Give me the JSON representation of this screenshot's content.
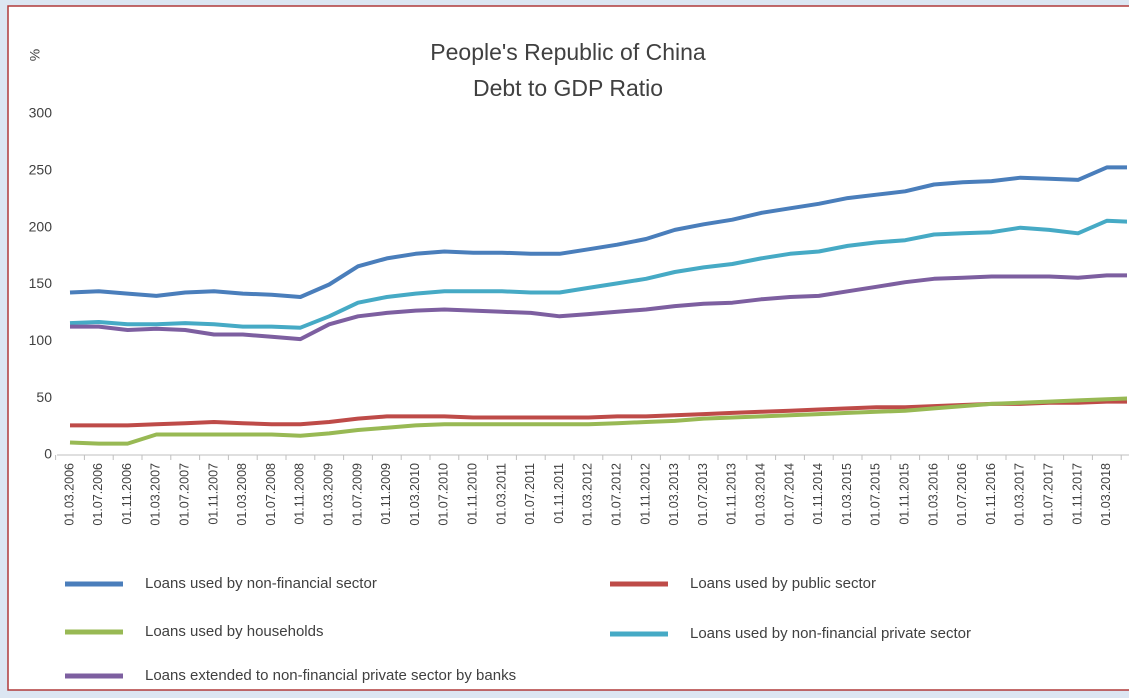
{
  "chart_data": {
    "type": "line",
    "title": [
      "People's Republic of China",
      "Debt to GDP Ratio"
    ],
    "ylabel": "%",
    "categories": [
      "01.03.2006",
      "01.07.2006",
      "01.11.2006",
      "01.03.2007",
      "01.07.2007",
      "01.11.2007",
      "01.03.2008",
      "01.07.2008",
      "01.11.2008",
      "01.03.2009",
      "01.07.2009",
      "01.11.2009",
      "01.03.2010",
      "01.07.2010",
      "01.11.2010",
      "01.03.2011",
      "01.07.2011",
      "01.11.2011",
      "01.03.2012",
      "01.07.2012",
      "01.11.2012",
      "01.03.2013",
      "01.07.2013",
      "01.11.2013",
      "01.03.2014",
      "01.07.2014",
      "01.11.2014",
      "01.03.2015",
      "01.07.2015",
      "01.11.2015",
      "01.03.2016",
      "01.07.2016",
      "01.11.2016",
      "01.03.2017",
      "01.07.2017",
      "01.11.2017",
      "01.03.2018",
      null
    ],
    "series": [
      {
        "name": "Loans used by non-financial sector",
        "color": "#4a7ebb",
        "values": [
          143,
          144,
          142,
          140,
          143,
          144,
          142,
          141,
          139,
          150,
          166,
          173,
          177,
          179,
          178,
          178,
          177,
          177,
          181,
          185,
          190,
          198,
          203,
          207,
          213,
          217,
          221,
          226,
          229,
          232,
          238,
          240,
          241,
          244,
          243,
          242,
          253,
          253
        ]
      },
      {
        "name": "Loans used by public sector",
        "color": "#be4b48",
        "values": [
          26,
          26,
          26,
          27,
          28,
          29,
          28,
          27,
          27,
          29,
          32,
          34,
          34,
          34,
          33,
          33,
          33,
          33,
          33,
          34,
          34,
          35,
          36,
          37,
          38,
          39,
          40,
          41,
          42,
          42,
          43,
          44,
          45,
          45,
          46,
          46,
          47,
          47
        ]
      },
      {
        "name": "Loans used by households",
        "color": "#98b954",
        "values": [
          11,
          10,
          10,
          18,
          18,
          18,
          18,
          18,
          17,
          19,
          22,
          24,
          26,
          27,
          27,
          27,
          27,
          27,
          27,
          28,
          29,
          30,
          32,
          33,
          34,
          35,
          36,
          37,
          38,
          39,
          41,
          43,
          45,
          46,
          47,
          48,
          49,
          50
        ]
      },
      {
        "name": "Loans used by non-financial private sector",
        "color": "#46aac5",
        "values": [
          116,
          117,
          115,
          115,
          116,
          115,
          113,
          113,
          112,
          122,
          134,
          139,
          142,
          144,
          144,
          144,
          143,
          143,
          147,
          151,
          155,
          161,
          165,
          168,
          173,
          177,
          179,
          184,
          187,
          189,
          194,
          195,
          196,
          200,
          198,
          195,
          206,
          205
        ]
      },
      {
        "name": "Loans extended to non-financial private sector by banks",
        "color": "#7d5fa0",
        "values": [
          113,
          113,
          110,
          111,
          110,
          106,
          106,
          104,
          102,
          115,
          122,
          125,
          127,
          128,
          127,
          126,
          125,
          122,
          124,
          126,
          128,
          131,
          133,
          134,
          137,
          139,
          140,
          144,
          148,
          152,
          155,
          156,
          157,
          157,
          157,
          156,
          158,
          158
        ]
      }
    ],
    "ylim": [
      0,
      300
    ],
    "yticks": [
      0,
      50,
      100,
      150,
      200,
      250,
      300
    ],
    "grid": false
  }
}
